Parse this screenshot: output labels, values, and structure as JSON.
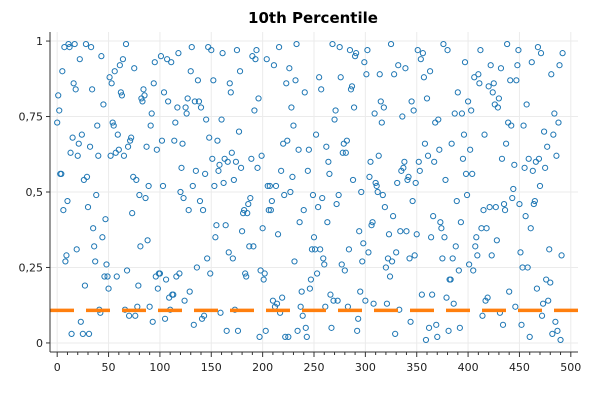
{
  "chart_data": {
    "type": "scatter",
    "title": "10th Percentile",
    "xlabel": "",
    "ylabel": "",
    "xlim": [
      -7,
      507
    ],
    "ylim": [
      -0.03,
      1.03
    ],
    "x_ticks": [
      0,
      50,
      100,
      150,
      200,
      250,
      300,
      350,
      400,
      450,
      500
    ],
    "y_ticks": [
      0,
      0.25,
      0.5,
      0.75,
      1
    ],
    "x_tick_labels": [
      "0",
      "50",
      "100",
      "150",
      "200",
      "250",
      "300",
      "350",
      "400",
      "450",
      "500"
    ],
    "y_tick_labels": [
      "0",
      "0,25",
      "0,5",
      "0,75",
      "1"
    ],
    "grid": true,
    "colors": {
      "points": "#1f77b4",
      "percentile_line": "#ff7f0e"
    },
    "series": [
      {
        "type": "scatter",
        "values": [
          0.73,
          0.82,
          0.77,
          0.56,
          0.56,
          0.9,
          0.44,
          0.98,
          0.27,
          0.29,
          0.47,
          0.99,
          0.98,
          0.63,
          0.03,
          0.68,
          0.86,
          0.99,
          0.84,
          0.31,
          0.62,
          0.66,
          0.94,
          0.07,
          0.69,
          0.03,
          0.54,
          0.19,
          0.99,
          0.55,
          0.45,
          0.03,
          0.65,
          0.98,
          0.84,
          0.38,
          0.32,
          0.27,
          0.49,
          0.72,
          0.62,
          0.11,
          0.1,
          0.95,
          0.35,
          0.79,
          0.22,
          0.41,
          0.26,
          0.22,
          0.18,
          0.88,
          0.62,
          0.86,
          0.73,
          0.72,
          0.9,
          0.63,
          0.22,
          0.69,
          0.64,
          0.92,
          0.83,
          0.82,
          0.94,
          0.62,
          0.11,
          0.99,
          0.24,
          0.65,
          0.09,
          0.67,
          0.68,
          0.43,
          0.55,
          0.91,
          0.09,
          0.54,
          0.12,
          0.19,
          0.49,
          0.32,
          0.81,
          0.8,
          0.84,
          0.82,
          0.48,
          0.65,
          0.34,
          0.52,
          0.12,
          0.72,
          0.76,
          0.07,
          0.86,
          0.93,
          0.22,
          0.64,
          0.18,
          0.23,
          0.23,
          0.95,
          0.67,
          0.52,
          0.83,
          0.08,
          0.21,
          0.94,
          0.8,
          0.15,
          0.11,
          0.93,
          0.16,
          0.16,
          0.67,
          0.73,
          0.22,
          0.78,
          0.96,
          0.23,
          0.5,
          0.58,
          0.66,
          0.48,
          0.14,
          0.78,
          0.76,
          0.81,
          0.44,
          0.17,
          0.9,
          0.98,
          0.52,
          0.06,
          0.8,
          0.57,
          0.25,
          0.87,
          0.8,
          0.47,
          0.78,
          0.08,
          0.44,
          0.09,
          0.56,
          0.74,
          0.28,
          0.98,
          0.68,
          0.23,
          0.97,
          0.61,
          0.87,
          0.52,
          0.35,
          0.39,
          0.67,
          0.57,
          0.59,
          0.1,
          0.74,
          0.96,
          0.53,
          0.61,
          0.39,
          0.04,
          0.6,
          0.3,
          0.86,
          0.83,
          0.63,
          0.28,
          0.54,
          0.11,
          0.6,
          0.97,
          0.04,
          0.7,
          0.9,
          0.58,
          0.37,
          0.43,
          0.44,
          0.23,
          0.22,
          0.43,
          0.46,
          0.32,
          0.48,
          0.61,
          0.95,
          0.32,
          0.77,
          0.94,
          0.97,
          0.58,
          0.81,
          0.02,
          0.24,
          0.62,
          0.38,
          0.21,
          0.23,
          0.04,
          0.94,
          0.52,
          0.44,
          0.52,
          0.44,
          0.47,
          0.14,
          0.92,
          0.12,
          0.52,
          0.13,
          0.36,
          0.98,
          0.1,
          0.57,
          0.15,
          0.66,
          0.49,
          0.02,
          0.86,
          0.67,
          0.02,
          0.91,
          0.5,
          0.78,
          0.55,
          0.72,
          0.27,
          0.87,
          0.99,
          0.04,
          0.64,
          0.4,
          0.12,
          0.17,
          0.09,
          0.44,
          0.83,
          0.05,
          0.02,
          0.57,
          0.64,
          0.18,
          0.21,
          0.31,
          0.49,
          0.35,
          0.31,
          0.69,
          0.23,
          0.45,
          0.88,
          0.31,
          0.84,
          0.48,
          0.28,
          0.26,
          0.12,
          0.65,
          0.4,
          0.6,
          0.56,
          0.16,
          0.05,
          0.99,
          0.14,
          0.74,
          0.77,
          0.46,
          0.14,
          0.49,
          0.98,
          0.88,
          0.26,
          0.63,
          0.66,
          0.24,
          0.63,
          0.67,
          0.12,
          0.31,
          0.97,
          0.84,
          0.85,
          0.54,
          0.78,
          0.95,
          0.96,
          0.04,
          0.08,
          0.37,
          0.17,
          0.5,
          0.27,
          0.33,
          0.93,
          0.14,
          0.89,
          0.97,
          0.3,
          0.55,
          0.6,
          0.39,
          0.4,
          0.13,
          0.76,
          0.53,
          0.52,
          0.5,
          0.62,
          0.89,
          0.8,
          0.73,
          0.49,
          0.78,
          0.45,
          0.25,
          0.13,
          0.28,
          0.36,
          0.22,
          0.99,
          0.27,
          0.42,
          0.89,
          0.03,
          0.3,
          0.53,
          0.92,
          0.11,
          0.37,
          0.57,
          0.75,
          0.58,
          0.6,
          0.91,
          0.37,
          0.54,
          0.55,
          0.28,
          0.07,
          0.8,
          0.47,
          0.77,
          0.29,
          0.53,
          0.36,
          0.97,
          0.6,
          0.57,
          0.94,
          0.16,
          0.96,
          0.88,
          0.66,
          0.01,
          0.81,
          0.62,
          0.05,
          0.9,
          0.35,
          0.16,
          0.42,
          0.6,
          0.73,
          0.06,
          0.02,
          0.74,
          0.64,
          0.4,
          0.38,
          0.28,
          0.99,
          0.35,
          0.54,
          0.15,
          0.97,
          0.04,
          0.21,
          0.21,
          0.66,
          0.28,
          0.13,
          0.76,
          0.32,
          0.47,
          0.83,
          0.24,
          0.05,
          0.4,
          0.76,
          0.61,
          0.69,
          0.93,
          0.56,
          0.49,
          0.8,
          0.26,
          0.64,
          0.77,
          0.56,
          0.24,
          0.88,
          0.32,
          0.35,
          0.29,
          0.89,
          0.86,
          0.97,
          0.38,
          0.09,
          0.44,
          0.69,
          0.14,
          0.38,
          0.15,
          0.85,
          0.45,
          0.92,
          0.29,
          0.83,
          0.86,
          0.79,
          0.45,
          0.34,
          0.78,
          0.81,
          0.1,
          0.91,
          0.61,
          0.06,
          0.46,
          0.44,
          0.66,
          0.99,
          0.73,
          0.17,
          0.87,
          0.72,
          0.48,
          0.51,
          0.59,
          0.12,
          0.87,
          0.92,
          0.97,
          0.46,
          0.3,
          0.06,
          0.25,
          0.72,
          0.58,
          0.42,
          0.79,
          0.25,
          0.61,
          0.02,
          0.38,
          0.93,
          0.57,
          0.46,
          0.47,
          0.6,
          0.18,
          0.98,
          0.61,
          0.52,
          0.96,
          0.09,
          0.13,
          0.7,
          0.58,
          0.21,
          0.65,
          0.14,
          0.31,
          0.2,
          0.89,
          0.03,
          0.69,
          0.76,
          0.07,
          0.62,
          0.04,
          0.73,
          0.92,
          0.01,
          0.29,
          0.96
        ]
      },
      {
        "type": "line",
        "style": "dashed",
        "x": [
          -7,
          507
        ],
        "values": [
          0.108,
          0.108
        ]
      }
    ]
  }
}
